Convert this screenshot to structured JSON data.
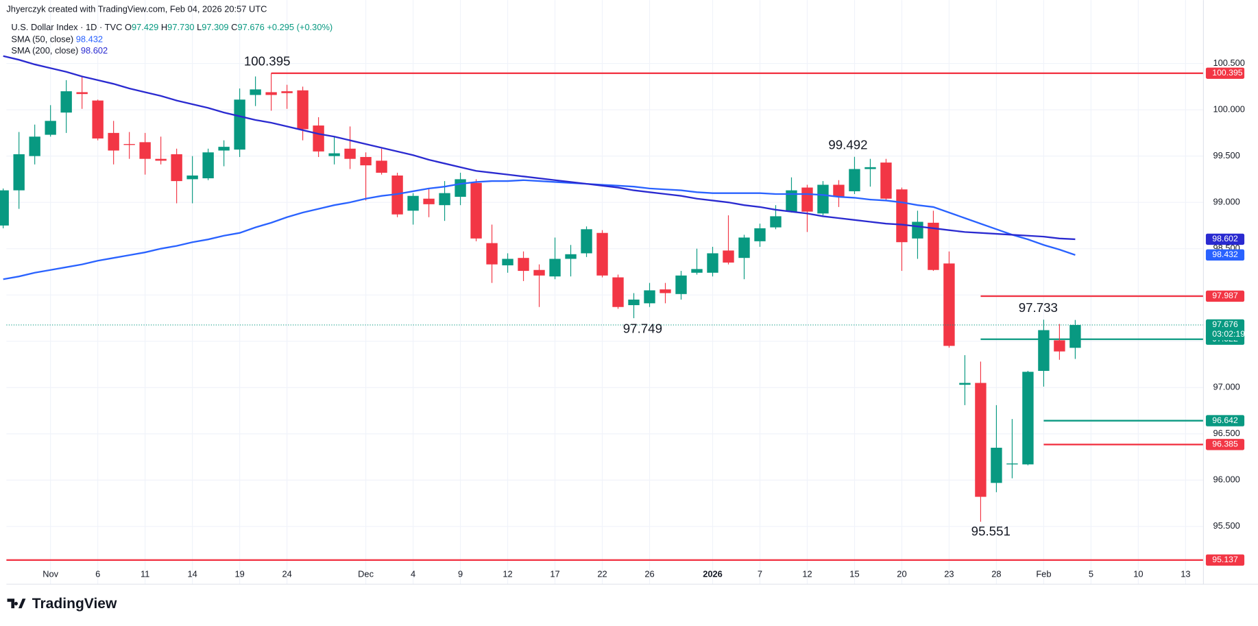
{
  "header": {
    "credit": "Jhyerczyk created with TradingView.com, Feb 04, 2026 20:57 UTC"
  },
  "footer": {
    "logo": "TradingView"
  },
  "chart_data": {
    "type": "candlestick",
    "symbol": "U.S. Dollar Index · 1D · TVC",
    "quote": [
      {
        "label": "O",
        "value": "97.429"
      },
      {
        "label": "H",
        "value": "97.730"
      },
      {
        "label": "L",
        "value": "97.309"
      },
      {
        "label": "C",
        "value": "97.676"
      }
    ],
    "change": "+0.295 (+0.30%)",
    "categories": [
      null,
      null,
      null,
      "Nov",
      null,
      null,
      "6",
      null,
      null,
      "11",
      null,
      null,
      "14",
      null,
      null,
      "19",
      null,
      null,
      "24",
      null,
      null,
      null,
      null,
      "Dec",
      null,
      null,
      "4",
      null,
      null,
      "9",
      null,
      null,
      "12",
      null,
      null,
      "17",
      null,
      null,
      "22",
      null,
      null,
      "26",
      null,
      null,
      null,
      "2026",
      null,
      null,
      "7",
      null,
      null,
      "12",
      null,
      null,
      "15",
      null,
      null,
      "20",
      null,
      null,
      "23",
      null,
      null,
      "28",
      null,
      null,
      "Feb",
      null,
      null,
      "5",
      null,
      null,
      "10",
      null,
      null,
      "13"
    ],
    "open": [
      98.75,
      99.13,
      99.5,
      99.73,
      99.97,
      100.19,
      100.1,
      99.75,
      99.63,
      99.65,
      99.47,
      99.52,
      99.25,
      99.26,
      99.56,
      99.57,
      100.16,
      100.19,
      100.2,
      100.21,
      99.83,
      99.5,
      99.58,
      99.49,
      99.45,
      99.29,
      98.91,
      99.04,
      98.97,
      99.06,
      99.21,
      98.56,
      98.32,
      98.4,
      98.27,
      98.2,
      98.39,
      98.45,
      98.67,
      98.19,
      97.89,
      97.91,
      98.06,
      98.01,
      98.24,
      98.24,
      98.48,
      98.4,
      98.58,
      98.73,
      98.9,
      99.16,
      98.88,
      99.19,
      99.12,
      99.36,
      99.43,
      99.14,
      98.61,
      98.78,
      98.34,
      97.03,
      97.05,
      95.97,
      96.17,
      96.17,
      97.18,
      97.51,
      97.429,
      null,
      null,
      null,
      null,
      null,
      null,
      null
    ],
    "high": [
      99.15,
      99.76,
      99.84,
      100.05,
      100.32,
      100.36,
      100.11,
      99.88,
      99.76,
      99.75,
      99.71,
      99.58,
      99.5,
      99.58,
      99.67,
      100.23,
      100.36,
      100.395,
      100.27,
      100.25,
      99.92,
      99.71,
      99.82,
      99.54,
      99.58,
      99.32,
      99.1,
      99.15,
      99.23,
      99.32,
      99.25,
      98.76,
      98.45,
      98.47,
      98.33,
      98.62,
      98.54,
      98.74,
      98.7,
      98.22,
      98.02,
      98.13,
      98.13,
      98.26,
      98.5,
      98.52,
      98.86,
      98.65,
      98.77,
      98.97,
      99.27,
      99.19,
      99.23,
      99.24,
      99.492,
      99.47,
      99.47,
      99.16,
      98.91,
      98.91,
      98.47,
      97.35,
      97.28,
      96.81,
      96.66,
      97.18,
      97.733,
      97.687,
      97.73,
      null,
      null,
      null,
      null,
      null,
      null,
      null
    ],
    "low": [
      98.72,
      98.93,
      99.41,
      99.71,
      99.75,
      100.01,
      99.67,
      99.41,
      99.47,
      99.3,
      99.41,
      98.99,
      98.99,
      99.24,
      99.39,
      99.49,
      100.04,
      99.99,
      100.01,
      99.67,
      99.49,
      99.41,
      99.36,
      99.02,
      99.3,
      98.84,
      98.76,
      98.84,
      98.8,
      98.97,
      98.58,
      98.13,
      98.24,
      98.15,
      97.87,
      98.17,
      98.2,
      98.41,
      98.19,
      97.85,
      97.749,
      97.87,
      97.91,
      97.95,
      98.22,
      98.2,
      98.33,
      98.17,
      98.52,
      98.71,
      98.89,
      98.68,
      98.86,
      98.95,
      99.09,
      99.17,
      99.02,
      98.26,
      98.39,
      98.26,
      97.43,
      96.81,
      95.551,
      95.87,
      96.02,
      96.16,
      97.01,
      97.3,
      97.309,
      null,
      null,
      null,
      null,
      null,
      null,
      null
    ],
    "close": [
      99.13,
      99.52,
      99.71,
      99.88,
      100.2,
      100.17,
      99.69,
      99.56,
      99.62,
      99.47,
      99.45,
      99.23,
      99.29,
      99.54,
      99.6,
      100.11,
      100.22,
      100.16,
      100.18,
      99.79,
      99.55,
      99.53,
      99.47,
      99.4,
      99.32,
      98.87,
      99.07,
      98.98,
      99.1,
      99.25,
      98.61,
      98.33,
      98.39,
      98.26,
      98.21,
      98.39,
      98.44,
      98.71,
      98.21,
      97.87,
      97.95,
      98.05,
      98.02,
      98.21,
      98.28,
      98.45,
      98.35,
      98.62,
      98.72,
      98.85,
      99.13,
      98.9,
      99.19,
      99.06,
      99.36,
      99.38,
      99.04,
      98.57,
      98.79,
      98.27,
      97.45,
      97.05,
      95.82,
      96.35,
      96.18,
      97.17,
      97.62,
      97.39,
      97.676,
      null,
      null,
      null,
      null,
      null,
      null,
      null
    ],
    "up_color": "#089981",
    "down_color": "#f23645",
    "series": [
      {
        "name": "SMA (50, close)",
        "color": "#2962ff",
        "values": [
          98.17,
          98.2,
          98.24,
          98.27,
          98.3,
          98.33,
          98.37,
          98.4,
          98.43,
          98.46,
          98.5,
          98.53,
          98.57,
          98.6,
          98.64,
          98.67,
          98.73,
          98.78,
          98.84,
          98.89,
          98.93,
          98.97,
          99.0,
          99.04,
          99.07,
          99.09,
          99.12,
          99.15,
          99.17,
          99.2,
          99.22,
          99.23,
          99.23,
          99.24,
          99.23,
          99.22,
          99.21,
          99.2,
          99.19,
          99.18,
          99.17,
          99.15,
          99.14,
          99.13,
          99.11,
          99.1,
          99.1,
          99.1,
          99.1,
          99.09,
          99.09,
          99.09,
          99.08,
          99.06,
          99.05,
          99.03,
          99.02,
          99.0,
          98.97,
          98.95,
          98.89,
          98.83,
          98.77,
          98.71,
          98.65,
          98.6,
          98.54,
          98.49,
          98.432,
          null,
          null,
          null,
          null,
          null,
          null,
          null
        ]
      },
      {
        "name": "SMA (200, close)",
        "color": "#2a2ad0",
        "values": [
          100.58,
          100.54,
          100.49,
          100.45,
          100.41,
          100.36,
          100.32,
          100.28,
          100.23,
          100.19,
          100.15,
          100.1,
          100.06,
          100.02,
          99.97,
          99.93,
          99.89,
          99.86,
          99.82,
          99.78,
          99.74,
          99.71,
          99.67,
          99.63,
          99.59,
          99.55,
          99.51,
          99.46,
          99.42,
          99.38,
          99.34,
          99.32,
          99.3,
          99.28,
          99.26,
          99.24,
          99.22,
          99.2,
          99.18,
          99.16,
          99.13,
          99.11,
          99.09,
          99.07,
          99.04,
          99.02,
          99.0,
          98.97,
          98.95,
          98.92,
          98.9,
          98.88,
          98.85,
          98.83,
          98.81,
          98.79,
          98.77,
          98.76,
          98.74,
          98.72,
          98.7,
          98.68,
          98.67,
          98.66,
          98.65,
          98.64,
          98.63,
          98.61,
          98.602,
          null,
          null,
          null,
          null,
          null,
          null,
          null
        ]
      }
    ],
    "levels": [
      {
        "value": 100.395,
        "color": "#f23645"
      },
      {
        "value": 97.987,
        "color": "#f23645"
      },
      {
        "value": 97.522,
        "color": "#089981"
      },
      {
        "value": 96.642,
        "color": "#089981"
      },
      {
        "value": 96.385,
        "color": "#f23645"
      },
      {
        "value": 95.137,
        "color": "#f23645"
      }
    ],
    "annotations": [
      100.395,
      99.492,
      97.749,
      97.733,
      95.551
    ],
    "countdown": "03:02:19",
    "ylim": [
      94.876,
      101.185
    ],
    "yticks": [
      {
        "value": 95.5,
        "label": "95.500"
      },
      {
        "value": 96,
        "label": "96.000"
      },
      {
        "value": 96.5,
        "label": "96.500"
      },
      {
        "value": 97,
        "label": "97.000"
      },
      {
        "value": 97.5,
        "label": "97.500"
      },
      {
        "value": 98,
        "label": "98.000"
      },
      {
        "value": 98.5,
        "label": "98.500"
      },
      {
        "value": 99,
        "label": "99.000"
      },
      {
        "value": 99.5,
        "label": "99.500"
      },
      {
        "value": 100,
        "label": "100.000"
      },
      {
        "value": 100.5,
        "label": "100.500"
      }
    ],
    "grid": true
  }
}
